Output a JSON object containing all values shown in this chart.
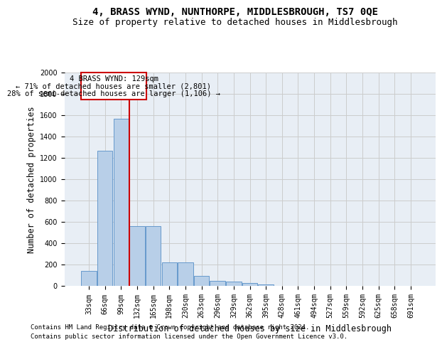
{
  "title": "4, BRASS WYND, NUNTHORPE, MIDDLESBROUGH, TS7 0QE",
  "subtitle": "Size of property relative to detached houses in Middlesbrough",
  "xlabel": "Distribution of detached houses by size in Middlesbrough",
  "ylabel": "Number of detached properties",
  "footnote1": "Contains HM Land Registry data © Crown copyright and database right 2024.",
  "footnote2": "Contains public sector information licensed under the Open Government Licence v3.0.",
  "annotation_line1": "4 BRASS WYND: 129sqm",
  "annotation_line2": "← 71% of detached houses are smaller (2,801)",
  "annotation_line3": "28% of semi-detached houses are larger (1,106) →",
  "bar_categories": [
    "33sqm",
    "66sqm",
    "99sqm",
    "132sqm",
    "165sqm",
    "198sqm",
    "230sqm",
    "263sqm",
    "296sqm",
    "329sqm",
    "362sqm",
    "395sqm",
    "428sqm",
    "461sqm",
    "494sqm",
    "527sqm",
    "559sqm",
    "592sqm",
    "625sqm",
    "658sqm",
    "691sqm"
  ],
  "bar_values": [
    140,
    1270,
    1570,
    560,
    560,
    220,
    220,
    95,
    50,
    40,
    25,
    15,
    0,
    0,
    0,
    0,
    0,
    0,
    0,
    0,
    0
  ],
  "bar_color": "#b8cfe8",
  "bar_edge_color": "#6699cc",
  "vline_color": "#cc0000",
  "annotation_box_color": "#cc0000",
  "ylim": [
    0,
    2000
  ],
  "yticks": [
    0,
    200,
    400,
    600,
    800,
    1000,
    1200,
    1400,
    1600,
    1800,
    2000
  ],
  "grid_color": "#cccccc",
  "bg_color": "#e8eef5",
  "title_fontsize": 10,
  "subtitle_fontsize": 9,
  "xlabel_fontsize": 8.5,
  "ylabel_fontsize": 8.5,
  "tick_fontsize": 7,
  "annotation_fontsize": 7.5,
  "footnote_fontsize": 6.5
}
